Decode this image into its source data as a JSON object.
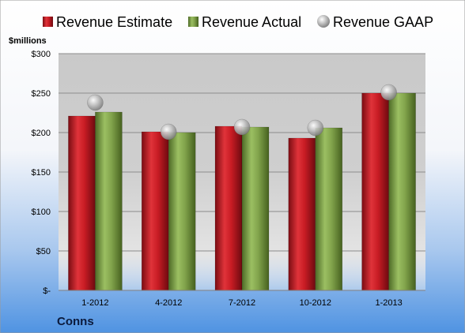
{
  "chart_data": {
    "type": "bar",
    "categories": [
      "1-2012",
      "4-2012",
      "7-2012",
      "10-2012",
      "1-2013"
    ],
    "series": [
      {
        "name": "Revenue Estimate",
        "values": [
          221,
          201,
          208,
          193,
          250
        ],
        "color": "#d0202a",
        "kind": "bar"
      },
      {
        "name": "Revenue Actual",
        "values": [
          226,
          200,
          207,
          206,
          250
        ],
        "color": "#7fa04a",
        "kind": "bar"
      },
      {
        "name": "Revenue GAAP",
        "values": [
          238,
          201,
          207,
          206,
          251
        ],
        "color": "#b5b5b5",
        "kind": "marker"
      }
    ],
    "yticks": [
      0,
      50,
      100,
      150,
      200,
      250,
      300
    ],
    "ytick_labels": [
      "$-",
      "$50",
      "$100",
      "$150",
      "$200",
      "$250",
      "$300"
    ],
    "ylim": [
      0,
      300
    ],
    "unit_label": "$millions",
    "company": "Conns",
    "grid": true,
    "legend_position": "top"
  }
}
